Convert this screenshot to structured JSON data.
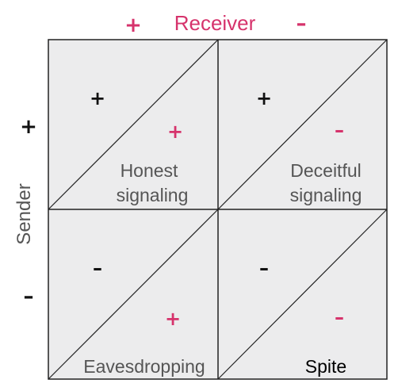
{
  "header": {
    "receiver_label": "Receiver",
    "receiver_plus": "+",
    "receiver_minus": "–"
  },
  "side": {
    "sender_label": "Sender",
    "sender_plus": "+",
    "sender_minus": "–"
  },
  "cells": [
    {
      "sender_sign": "+",
      "receiver_sign": "+",
      "label_lines": [
        "Honest",
        "signaling"
      ]
    },
    {
      "sender_sign": "+",
      "receiver_sign": "–",
      "label_lines": [
        "Deceitful",
        "signaling"
      ]
    },
    {
      "sender_sign": "–",
      "receiver_sign": "+",
      "label_lines": [
        "Eavesdropping"
      ]
    },
    {
      "sender_sign": "–",
      "receiver_sign": "–",
      "label_lines": [
        "Spite"
      ]
    }
  ],
  "colors": {
    "cell_fill": "#ececed",
    "grid_line": "#222222",
    "accent_pink": "#d6336c",
    "text_gray": "#555555",
    "text_black": "#111111"
  }
}
